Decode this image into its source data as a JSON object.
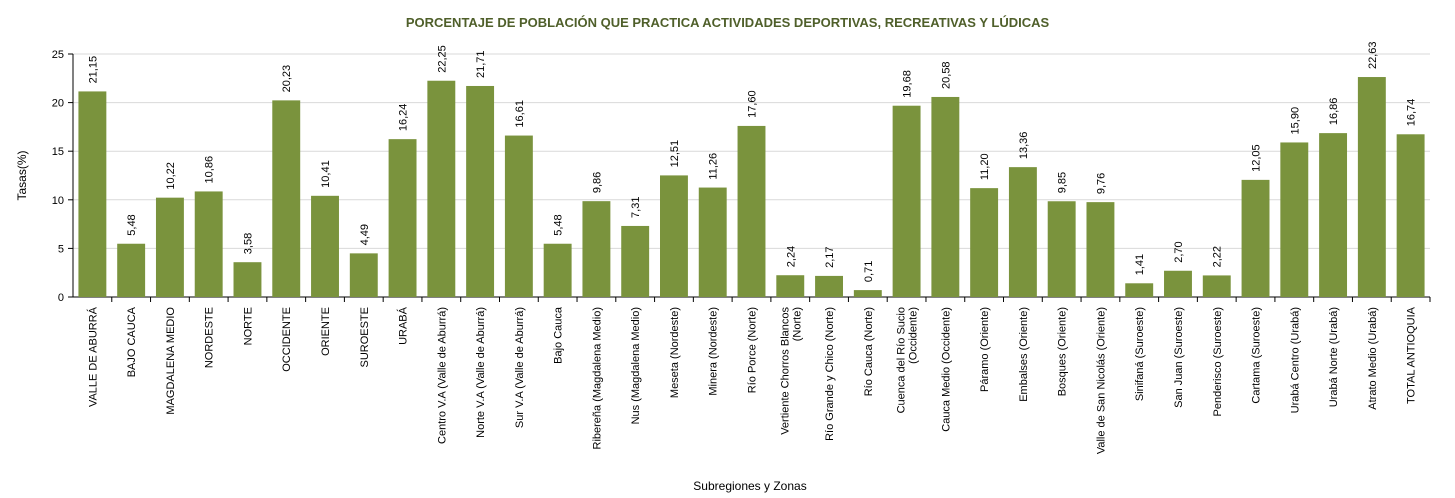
{
  "chart_data": {
    "type": "bar",
    "title": "PORCENTAJE DE POBLACIÓN QUE PRACTICA ACTIVIDADES DEPORTIVAS, RECREATIVAS Y LÚDICAS",
    "xlabel": "Subregiones y Zonas",
    "ylabel": "Tasas(%)",
    "ylim": [
      0,
      25
    ],
    "yticks": [
      0,
      5,
      10,
      15,
      20,
      25
    ],
    "grid": true,
    "bar_color": "#7a933d",
    "categories": [
      [
        "VALLE DE ABURRÁ"
      ],
      [
        "BAJO CAUCA"
      ],
      [
        "MAGDALENA MEDIO"
      ],
      [
        "NORDESTE"
      ],
      [
        "NORTE"
      ],
      [
        "OCCIDENTE"
      ],
      [
        "ORIENTE"
      ],
      [
        "SUROESTE"
      ],
      [
        "URABÁ"
      ],
      [
        "Centro V.A (Valle de Aburrá)"
      ],
      [
        "Norte V.A (Valle de Aburrá)"
      ],
      [
        "Sur  V.A (Valle de Aburrá)"
      ],
      [
        "Bajo Cauca"
      ],
      [
        "Ribereña  (Magdalena Medio)"
      ],
      [
        "Nus  (Magdalena Medio)"
      ],
      [
        "Meseta  (Nordeste)"
      ],
      [
        "Minera  (Nordeste)"
      ],
      [
        "Río Porce   (Norte)"
      ],
      [
        "Vertiente Chorros Blancos",
        "(Norte)"
      ],
      [
        "Río Grande y Chico  (Norte)"
      ],
      [
        "Río Cauca  (Norte)"
      ],
      [
        "Cuenca del Río Sucio",
        "(Occidente)"
      ],
      [
        "Cauca Medio  (Occidente)"
      ],
      [
        "Páramo  (Oriente)"
      ],
      [
        "Embalses  (Oriente)"
      ],
      [
        "Bosques  (Oriente)"
      ],
      [
        "Valle de San Nicolás  (Oriente)"
      ],
      [
        "Sinifaná  (Suroeste)"
      ],
      [
        "San Juan  (Suroeste)"
      ],
      [
        "Penderisco  (Suroeste)"
      ],
      [
        "Cartama  (Suroeste)"
      ],
      [
        "Urabá Centro  (Urabá)"
      ],
      [
        "Urabá Norte  (Urabá)"
      ],
      [
        "Atrato Medio  (Urabá)"
      ],
      [
        "TOTAL ANTIOQUIA"
      ]
    ],
    "values": [
      21.15,
      5.48,
      10.22,
      10.86,
      3.58,
      20.23,
      10.41,
      4.49,
      16.24,
      22.25,
      21.71,
      16.61,
      5.48,
      9.86,
      7.31,
      12.51,
      11.26,
      17.6,
      2.24,
      2.17,
      0.71,
      19.68,
      20.58,
      11.2,
      13.36,
      9.85,
      9.76,
      1.41,
      2.7,
      2.22,
      12.05,
      15.9,
      16.86,
      22.63,
      16.74
    ],
    "data_labels": [
      "21,15",
      "5,48",
      "10,22",
      "10,86",
      "3,58",
      "20,23",
      "10,41",
      "4,49",
      "16,24",
      "22,25",
      "21,71",
      "16,61",
      "5,48",
      "9,86",
      "7,31",
      "12,51",
      "11,26",
      "17,60",
      "2,24",
      "2,17",
      "0,71",
      "19,68",
      "20,58",
      "11,20",
      "13,36",
      "9,85",
      "9,76",
      "1,41",
      "2,70",
      "2,22",
      "12,05",
      "15,90",
      "16,86",
      "22,63",
      "16,74"
    ]
  }
}
